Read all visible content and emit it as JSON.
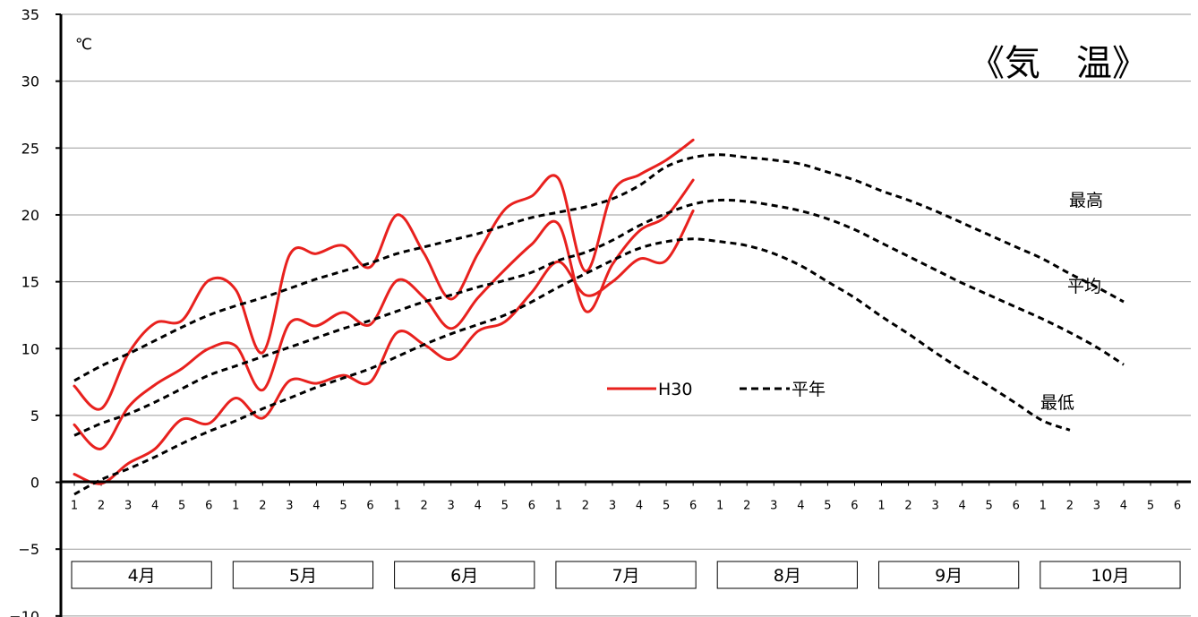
{
  "chart_data": {
    "type": "line",
    "title": "《気　温》",
    "unit_label": "℃",
    "ylim": [
      -10,
      35
    ],
    "y_ticks": [
      35,
      30,
      25,
      20,
      15,
      10,
      5,
      0,
      -5,
      -10
    ],
    "y_tick_labels": [
      "35",
      "30",
      "25",
      "20",
      "15",
      "10",
      "5",
      "0",
      "−5",
      "−10"
    ],
    "grid": true,
    "x_ticks": [
      "1",
      "2",
      "3",
      "4",
      "5",
      "6",
      "1",
      "2",
      "3",
      "4",
      "5",
      "6",
      "1",
      "2",
      "3",
      "4",
      "5",
      "6",
      "1",
      "2",
      "3",
      "4",
      "5",
      "6",
      "1",
      "2",
      "3",
      "4",
      "5",
      "6",
      "1",
      "2",
      "3",
      "4",
      "5",
      "6",
      "1",
      "2",
      "3",
      "4",
      "5",
      "6"
    ],
    "months": [
      "4月",
      "5月",
      "6月",
      "7月",
      "8月",
      "9月",
      "10月"
    ],
    "legend": {
      "h30_label": "H30",
      "normal_label": "平年"
    },
    "curve_labels": {
      "max": "最高",
      "mean": "平均",
      "min": "最低"
    },
    "series": [
      {
        "name": "H30",
        "kind": "max",
        "color": "#e8211e",
        "style": "solid",
        "values": [
          7.2,
          5.5,
          9.6,
          11.9,
          12.1,
          15.1,
          14.4,
          9.7,
          17.0,
          17.1,
          17.7,
          16.1,
          20.0,
          17.1,
          13.7,
          17.1,
          20.4,
          21.4,
          22.7,
          15.8,
          21.7,
          23.0,
          24.1,
          25.6
        ]
      },
      {
        "name": "H30",
        "kind": "mean",
        "color": "#e8211e",
        "style": "solid",
        "values": [
          4.3,
          2.5,
          5.6,
          7.3,
          8.5,
          10.0,
          10.2,
          6.9,
          11.9,
          11.7,
          12.7,
          11.8,
          15.1,
          13.8,
          11.5,
          13.8,
          15.9,
          17.8,
          19.3,
          12.8,
          16.3,
          18.8,
          19.9,
          22.6
        ]
      },
      {
        "name": "H30",
        "kind": "min",
        "color": "#e8211e",
        "style": "solid",
        "values": [
          0.6,
          -0.1,
          1.4,
          2.5,
          4.7,
          4.4,
          6.3,
          4.8,
          7.6,
          7.4,
          8.0,
          7.5,
          11.2,
          10.3,
          9.2,
          11.3,
          12.0,
          14.2,
          16.5,
          14.0,
          15.0,
          16.7,
          16.6,
          20.3
        ]
      },
      {
        "name": "平年",
        "kind": "max",
        "color": "#000000",
        "style": "dashed",
        "values": [
          7.6,
          8.7,
          9.6,
          10.6,
          11.6,
          12.5,
          13.2,
          13.8,
          14.5,
          15.2,
          15.8,
          16.4,
          17.1,
          17.6,
          18.1,
          18.6,
          19.2,
          19.8,
          20.2,
          20.6,
          21.2,
          22.2,
          23.6,
          24.3,
          24.5,
          24.3,
          24.1,
          23.8,
          23.2,
          22.6,
          21.8,
          21.1,
          20.3,
          19.4,
          18.5,
          17.6,
          16.7,
          15.6,
          14.6,
          13.5
        ]
      },
      {
        "name": "平年",
        "kind": "mean",
        "color": "#000000",
        "style": "dashed",
        "values": [
          3.5,
          4.4,
          5.1,
          6.0,
          7.0,
          8.0,
          8.7,
          9.4,
          10.1,
          10.8,
          11.5,
          12.1,
          12.8,
          13.5,
          14.0,
          14.6,
          15.1,
          15.7,
          16.6,
          17.2,
          18.1,
          19.2,
          20.1,
          20.8,
          21.1,
          21.0,
          20.7,
          20.3,
          19.7,
          18.9,
          17.9,
          16.9,
          15.9,
          14.9,
          14.0,
          13.1,
          12.2,
          11.2,
          10.1,
          8.8
        ]
      },
      {
        "name": "平年",
        "kind": "min",
        "color": "#000000",
        "style": "dashed",
        "values": [
          -0.9,
          0.2,
          1.0,
          1.9,
          2.9,
          3.8,
          4.6,
          5.5,
          6.3,
          7.1,
          7.8,
          8.5,
          9.4,
          10.3,
          11.1,
          11.8,
          12.5,
          13.5,
          14.6,
          15.6,
          16.6,
          17.5,
          18.0,
          18.2,
          18.0,
          17.7,
          17.1,
          16.2,
          15.0,
          13.8,
          12.4,
          11.1,
          9.7,
          8.4,
          7.2,
          5.9,
          4.6,
          3.9
        ]
      }
    ]
  }
}
